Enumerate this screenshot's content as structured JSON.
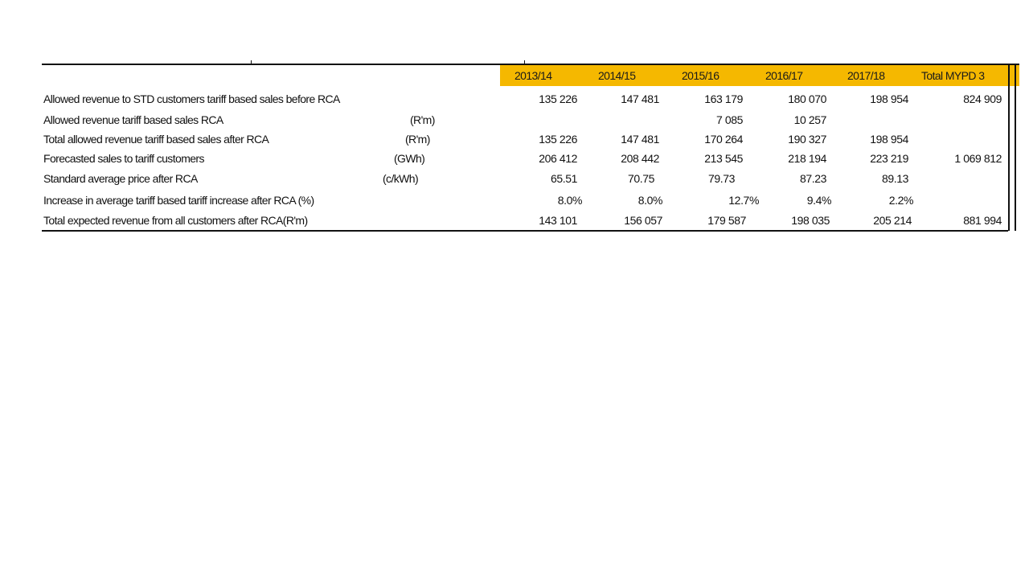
{
  "table": {
    "headers": [
      "2013/14",
      "2014/15",
      "2015/16",
      "2016/17",
      "2017/18",
      "Total MYPD 3"
    ],
    "rows": [
      {
        "label": "Allowed revenue to STD customers tariff based sales before RCA",
        "unit": "",
        "values": [
          "135 226",
          "147 481",
          "163 179",
          "180 070",
          "198 954",
          "824 909"
        ]
      },
      {
        "label": "Allowed revenue tariff based sales  RCA",
        "unit": "(R'm)",
        "values": [
          "",
          "",
          "7 085",
          "10 257",
          "",
          ""
        ]
      },
      {
        "label": "Total allowed revenue tariff based sales after RCA",
        "unit": "(R'm)",
        "values": [
          "135 226",
          "147 481",
          "170 264",
          "190 327",
          "198 954",
          ""
        ]
      },
      {
        "label": "Forecasted sales to tariff customers",
        "unit": "(GWh)",
        "values": [
          "206 412",
          "208 442",
          "213 545",
          "218 194",
          "223 219",
          "1 069 812"
        ]
      },
      {
        "label": "Standard average price after  RCA",
        "unit": "(c/kWh)",
        "values": [
          "65.51",
          "70.75",
          "79.73",
          "87.23",
          "89.13",
          ""
        ]
      },
      {
        "label": "Increase in average tariff based tariff increase after  RCA  (%)",
        "unit": "",
        "values": [
          "8.0%",
          "8.0%",
          "12.7%",
          "9.4%",
          "2.2%",
          ""
        ]
      },
      {
        "label": " Total expected revenue from all customers  after RCA(R'm)",
        "unit": "",
        "values": [
          "143 101",
          "156 057",
          "179 587",
          "198 035",
          "205 214",
          "881 994"
        ]
      }
    ]
  },
  "colors": {
    "header_band": "#f5b800",
    "rule": "#111111"
  }
}
